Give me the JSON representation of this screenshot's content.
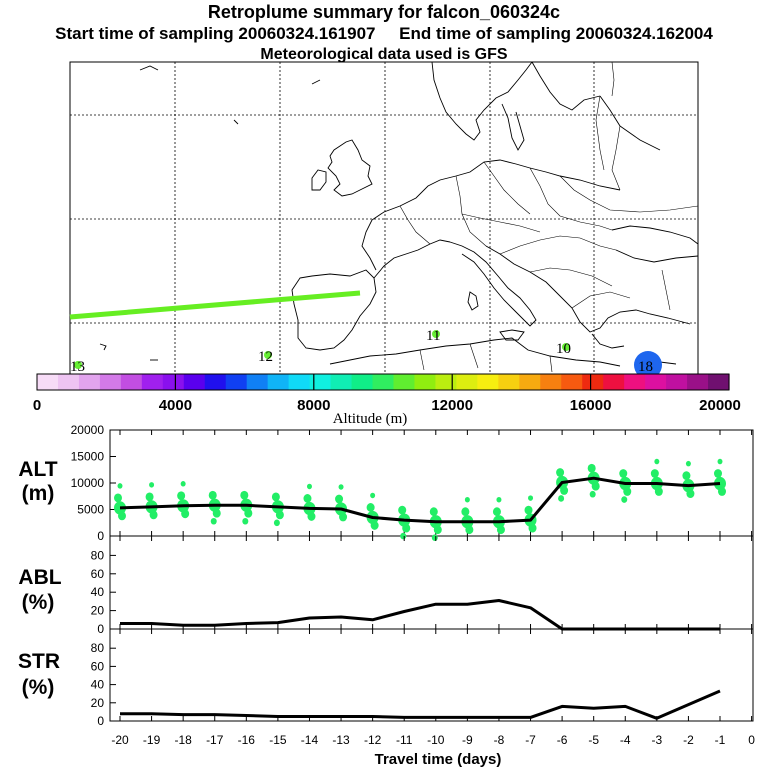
{
  "header": {
    "title": "Retroplume summary for falcon_060324c",
    "start_label": "Start time of sampling 20060324.161907",
    "end_label": "End time of sampling 20060324.162004",
    "met_label": "Meteorological data used is GFS"
  },
  "map": {
    "point_labels": [
      {
        "text": "13",
        "color": "#66ee33"
      },
      {
        "text": "12",
        "color": "#66ee33"
      },
      {
        "text": "11",
        "color": "#66ee33"
      },
      {
        "text": "10",
        "color": "#66ee33"
      },
      {
        "text": "18",
        "color": "#1e66ee"
      }
    ],
    "plume_color": "#66ee22"
  },
  "colorbar": {
    "title": "Altitude (m)",
    "ticks": [
      "0",
      "4000",
      "8000",
      "12000",
      "16000",
      "20000"
    ],
    "colors": [
      "#f7dcf7",
      "#eec4f2",
      "#e2a4ee",
      "#d37ae8",
      "#c24ee2",
      "#a020ee",
      "#8a10ee",
      "#5a00ee",
      "#2010ee",
      "#1040f2",
      "#1080f5",
      "#10b4f7",
      "#10daf7",
      "#10f0e0",
      "#10eeb4",
      "#10ee88",
      "#30ee60",
      "#60ee30",
      "#90ee10",
      "#bbee10",
      "#ddee10",
      "#f7ee10",
      "#f7d010",
      "#f7aa10",
      "#f78010",
      "#f75a10",
      "#ee2a10",
      "#ee1040",
      "#ee1080",
      "#dd10a0",
      "#c010a0",
      "#9a1088",
      "#701070"
    ]
  },
  "chart_data": [
    {
      "type": "line",
      "id": "ALT",
      "label_top": "ALT",
      "label_bottom": "(m)",
      "x": [
        -20,
        -19,
        -18,
        -17,
        -16,
        -15,
        -14,
        -13,
        -12,
        -11,
        -10,
        -9,
        -8,
        -7,
        -6,
        -5,
        -4,
        -3,
        -2,
        -1
      ],
      "values": [
        5300,
        5500,
        5700,
        5800,
        5800,
        5500,
        5200,
        5100,
        3500,
        3000,
        2700,
        2700,
        2700,
        3000,
        10100,
        10900,
        9900,
        9900,
        9500,
        9900
      ],
      "ylim": [
        0,
        20000
      ],
      "yticks": [
        "0",
        "5000",
        "10000",
        "15000",
        "20000"
      ],
      "scatter_color": "#22ee66"
    },
    {
      "type": "line",
      "id": "ABL",
      "label_top": "ABL",
      "label_bottom": "(%)",
      "x": [
        -20,
        -19,
        -18,
        -17,
        -16,
        -15,
        -14,
        -13,
        -12,
        -11,
        -10,
        -9,
        -8,
        -7,
        -6,
        -5,
        -4,
        -3,
        -2,
        -1
      ],
      "values": [
        6,
        6,
        4,
        4,
        6,
        7,
        12,
        13,
        10,
        19,
        27,
        27,
        31,
        23,
        0,
        0,
        0,
        0,
        0,
        0
      ],
      "ylim": [
        0,
        100
      ],
      "yticks": [
        "0",
        "20",
        "40",
        "60",
        "80"
      ]
    },
    {
      "type": "line",
      "id": "STR",
      "label_top": "STR",
      "label_bottom": "(%)",
      "x": [
        -20,
        -19,
        -18,
        -17,
        -16,
        -15,
        -14,
        -13,
        -12,
        -11,
        -10,
        -9,
        -8,
        -7,
        -6,
        -5,
        -4,
        -3,
        -2,
        -1
      ],
      "values": [
        8,
        8,
        7,
        7,
        6,
        5,
        5,
        5,
        5,
        4,
        4,
        4,
        4,
        4,
        16,
        14,
        16,
        3,
        18,
        33
      ],
      "ylim": [
        0,
        100
      ],
      "yticks": [
        "0",
        "20",
        "40",
        "60",
        "80"
      ],
      "xlabel": "Travel time (days)",
      "xticks": [
        "-20",
        "-19",
        "-18",
        "-17",
        "-16",
        "-15",
        "-14",
        "-13",
        "-12",
        "-11",
        "-10",
        "-9",
        "-8",
        "-7",
        "-6",
        "-5",
        "-4",
        "-3",
        "-2",
        "-1",
        "0"
      ]
    }
  ]
}
